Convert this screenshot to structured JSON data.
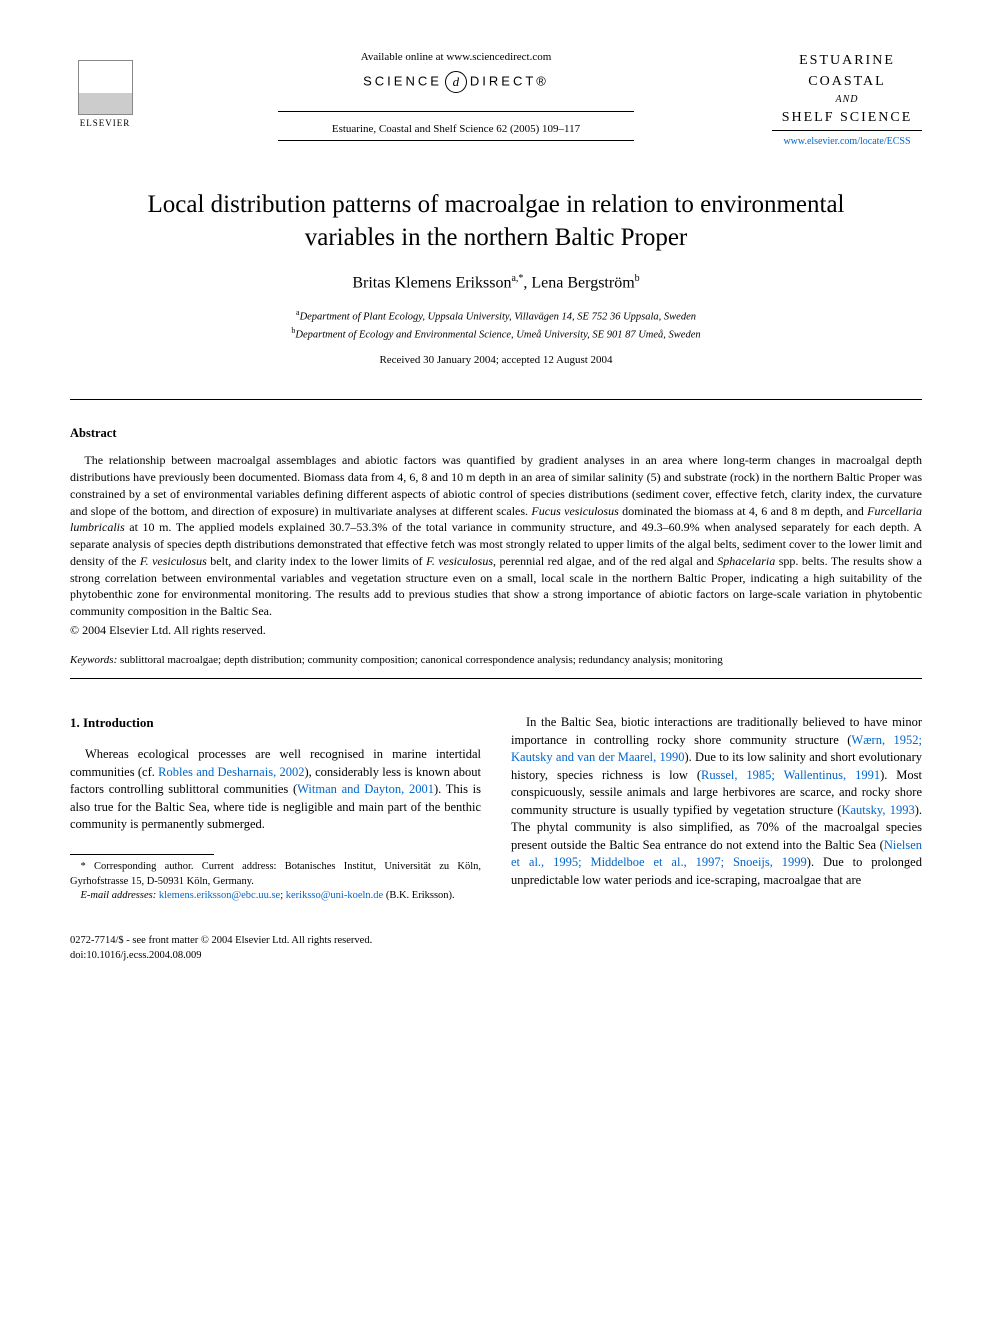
{
  "header": {
    "available_online": "Available online at www.sciencedirect.com",
    "sciencedirect_prefix": "SCIENCE",
    "sciencedirect_d": "d",
    "sciencedirect_suffix": "DIRECT®",
    "journal_ref": "Estuarine, Coastal and Shelf Science 62 (2005) 109–117",
    "elsevier_label": "ELSEVIER",
    "journal_name_line1": "ESTUARINE",
    "journal_name_line2": "COASTAL",
    "journal_name_and": "AND",
    "journal_name_line3": "SHELF SCIENCE",
    "journal_url": "www.elsevier.com/locate/ECSS"
  },
  "article": {
    "title": "Local distribution patterns of macroalgae in relation to environmental variables in the northern Baltic Proper",
    "author1_name": "Britas Klemens Eriksson",
    "author1_sup": "a,*",
    "author2_name": "Lena Bergström",
    "author2_sup": "b",
    "authors_sep": ", ",
    "affil_a_sup": "a",
    "affil_a": "Department of Plant Ecology, Uppsala University, Villavägen 14, SE 752 36 Uppsala, Sweden",
    "affil_b_sup": "b",
    "affil_b": "Department of Ecology and Environmental Science, Umeå University, SE 901 87 Umeå, Sweden",
    "dates": "Received 30 January 2004; accepted 12 August 2004"
  },
  "abstract": {
    "heading": "Abstract",
    "p1a": "The relationship between macroalgal assemblages and abiotic factors was quantified by gradient analyses in an area where long-term changes in macroalgal depth distributions have previously been documented. Biomass data from 4, 6, 8 and 10 m depth in an area of similar salinity (5) and substrate (rock) in the northern Baltic Proper was constrained by a set of environmental variables defining different aspects of abiotic control of species distributions (sediment cover, effective fetch, clarity index, the curvature and slope of the bottom, and direction of exposure) in multivariate analyses at different scales. ",
    "species1": "Fucus vesiculosus",
    "p1b": " dominated the biomass at 4, 6 and 8 m depth, and ",
    "species2": "Furcellaria lumbricalis",
    "p1c": " at 10 m. The applied models explained 30.7–53.3% of the total variance in community structure, and 49.3–60.9% when analysed separately for each depth. A separate analysis of species depth distributions demonstrated that effective fetch was most strongly related to upper limits of the algal belts, sediment cover to the lower limit and density of the ",
    "species3": "F. vesiculosus",
    "p1d": " belt, and clarity index to the lower limits of ",
    "species4": "F. vesiculosus",
    "p1e": ", perennial red algae, and of the red algal and ",
    "species5": "Sphacelaria",
    "p1f": " spp. belts. The results show a strong correlation between environmental variables and vegetation structure even on a small, local scale in the northern Baltic Proper, indicating a high suitability of the phytobenthic zone for environmental monitoring. The results add to previous studies that show a strong importance of abiotic factors on large-scale variation in phytobentic community composition in the Baltic Sea.",
    "copyright": "© 2004 Elsevier Ltd. All rights reserved.",
    "keywords_label": "Keywords:",
    "keywords": " sublittoral macroalgae; depth distribution; community composition; canonical correspondence analysis; redundancy analysis; monitoring"
  },
  "intro": {
    "heading": "1. Introduction",
    "left_p1a": "Whereas ecological processes are well recognised in marine intertidal communities (cf. ",
    "left_ref1": "Robles and Desharnais, 2002",
    "left_p1b": "), considerably less is known about factors controlling sublittoral communities (",
    "left_ref2": "Witman and Dayton, 2001",
    "left_p1c": "). This is also true for the Baltic Sea, where tide is negligible and main part of the benthic community is permanently submerged.",
    "right_p1a": "In the Baltic Sea, biotic interactions are traditionally believed to have minor importance in controlling rocky shore community structure (",
    "right_ref1": "Wærn, 1952; Kautsky and van der Maarel, 1990",
    "right_p1b": "). Due to its low salinity and short evolutionary history, species richness is low (",
    "right_ref2": "Russel, 1985; Wallentinus, 1991",
    "right_p1c": "). Most conspicuously, sessile animals and large herbivores are scarce, and rocky shore community structure is usually typified by vegetation structure (",
    "right_ref3": "Kautsky, 1993",
    "right_p1d": "). The phytal community is also simplified, as 70% of the macroalgal species present outside the Baltic Sea entrance do not extend into the Baltic Sea (",
    "right_ref4": "Nielsen et al., 1995; Middelboe et al., 1997; Snoeijs, 1999",
    "right_p1e": "). Due to prolonged unpredictable low water periods and ice-scraping, macroalgae that are"
  },
  "footnote": {
    "corr_label": "* Corresponding author. Current address: Botanisches Institut, Universität zu Köln, Gyrhofstrasse 15, D-50931 Köln, Germany.",
    "email_label": "E-mail addresses:",
    "email1": "klemens.eriksson@ebc.uu.se",
    "email_sep": "; ",
    "email2": "keriksso@uni-koeln.de",
    "email_author": " (B.K. Eriksson)."
  },
  "footer": {
    "issn": "0272-7714/$ - see front matter © 2004 Elsevier Ltd. All rights reserved.",
    "doi": "doi:10.1016/j.ecss.2004.08.009"
  },
  "colors": {
    "link": "#0066cc",
    "text": "#000000",
    "bg": "#ffffff"
  }
}
